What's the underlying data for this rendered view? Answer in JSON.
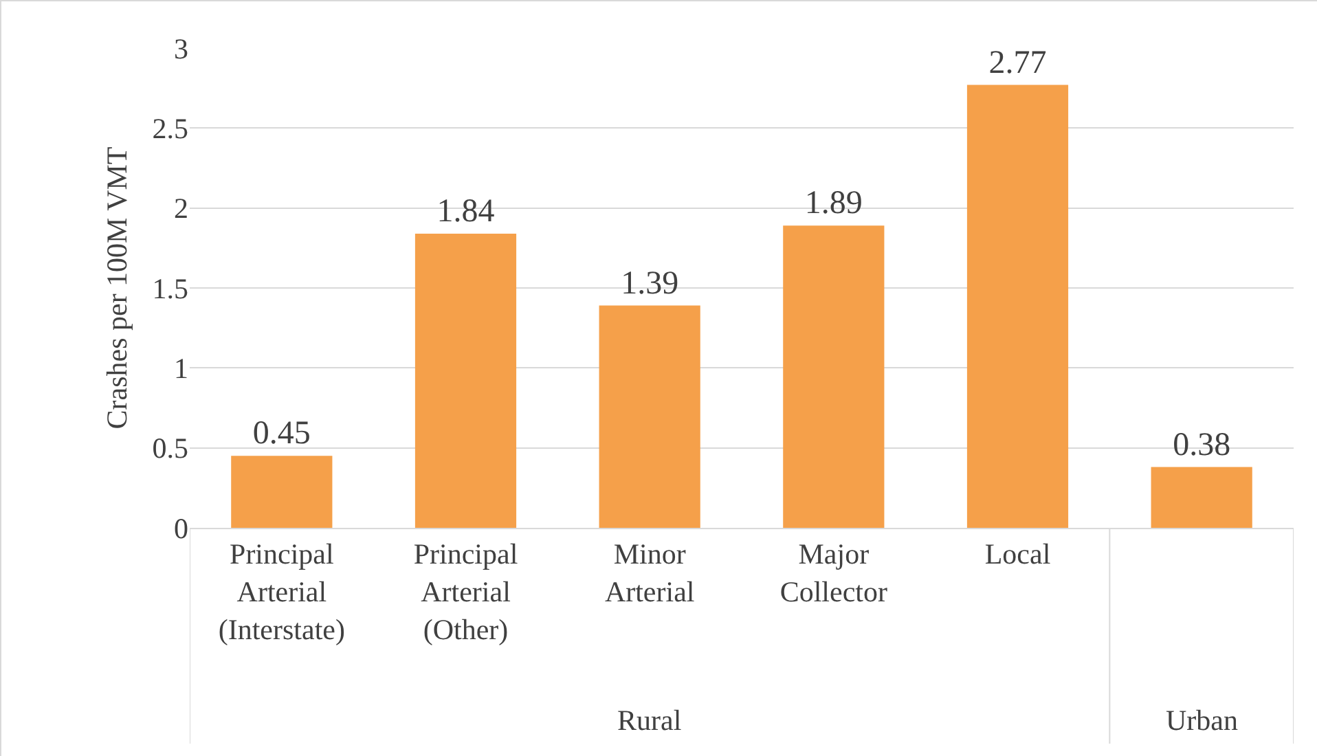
{
  "chart_data": {
    "type": "bar",
    "ylabel": "Crashes per 100M VMT",
    "categories": [
      "Principal Arterial (Interstate)",
      "Principal Arterial (Other)",
      "Minor Arterial",
      "Major Collector",
      "Local",
      null
    ],
    "values": [
      0.45,
      1.84,
      1.39,
      1.89,
      2.77,
      0.38
    ],
    "color": "#f5a04a",
    "ylim": [
      0,
      3
    ],
    "yticks": [
      0,
      0.5,
      1,
      1.5,
      2,
      2.5,
      3
    ],
    "grid": "y",
    "data_labels": true,
    "annotations": [
      "Rural",
      "Urban"
    ]
  }
}
